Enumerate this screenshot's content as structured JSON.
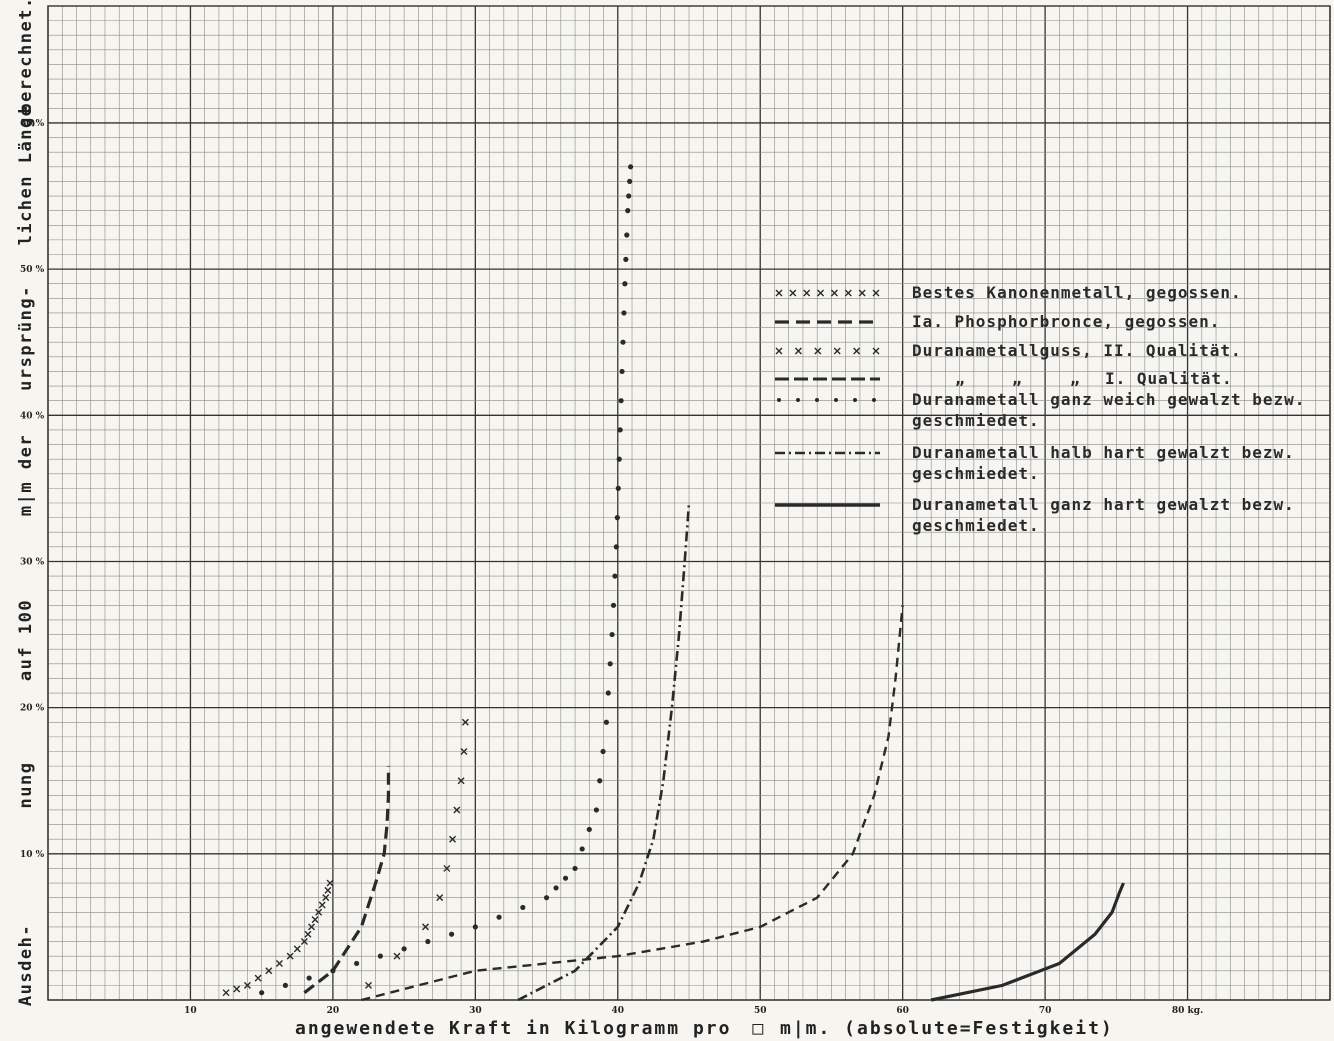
{
  "chart_data": {
    "type": "line",
    "xlabel_parts": [
      "angewendete Kraft in Kilogramm pro",
      "m|m. (absolute=Festigkeit)"
    ],
    "xlabel_box_symbol": "□",
    "ylabel_segments": [
      "Ausdeh-",
      "nung",
      "auf 100",
      "m|m der",
      "ursprüng-",
      "lichen Länge",
      "berechnet."
    ],
    "x_ticks": [
      {
        "value": 10,
        "label": "10"
      },
      {
        "value": 20,
        "label": "20"
      },
      {
        "value": 30,
        "label": "30"
      },
      {
        "value": 40,
        "label": "40"
      },
      {
        "value": 50,
        "label": "50"
      },
      {
        "value": 60,
        "label": "60"
      },
      {
        "value": 70,
        "label": "70"
      },
      {
        "value": 80,
        "label": "80 kg."
      }
    ],
    "y_ticks": [
      {
        "value": 10,
        "label": "10 %"
      },
      {
        "value": 20,
        "label": "20 %"
      },
      {
        "value": 30,
        "label": "30 %"
      },
      {
        "value": 40,
        "label": "40 %"
      },
      {
        "value": 50,
        "label": "50 %"
      },
      {
        "value": 60,
        "label": "60 %"
      }
    ],
    "xlim": [
      0,
      90
    ],
    "ylim": [
      0,
      68
    ],
    "grid": true,
    "legend_position": "right",
    "series": [
      {
        "name": "Bestes Kanonenmetall, gegossen.",
        "style": "x-dense",
        "x": [
          12.5,
          14,
          15.5,
          17,
          18,
          18.5,
          19,
          19.5,
          19.8
        ],
        "y": [
          0.5,
          1,
          2,
          3,
          4,
          5,
          6,
          7,
          8
        ]
      },
      {
        "name": "Ia. Phosphorbronce, gegossen.",
        "style": "long-dash",
        "x": [
          18,
          20,
          22,
          23,
          23.6,
          23.8,
          23.9,
          23.9
        ],
        "y": [
          0.5,
          2,
          5,
          8,
          10,
          12,
          14,
          16
        ]
      },
      {
        "name": "Duranametallguss, II. Qualität.",
        "style": "x-sparse",
        "x": [
          22.5,
          24.5,
          26.5,
          27.5,
          28,
          28.4,
          28.7,
          29,
          29.2,
          29.3
        ],
        "y": [
          1,
          3,
          5,
          7,
          9,
          11,
          13,
          15,
          17,
          19
        ]
      },
      {
        "name": "I. Qualität.",
        "label_prefix": [
          "„",
          "„",
          "„"
        ],
        "style": "dash",
        "x": [
          22,
          30,
          40,
          46,
          50,
          54,
          56.5,
          58,
          59,
          59.5,
          59.8,
          60
        ],
        "y": [
          0,
          2,
          3,
          4,
          5,
          7,
          10,
          14,
          18,
          22,
          25,
          27
        ]
      },
      {
        "name": "Duranametall ganz weich gewalzt bezw. geschmiedet.",
        "style": "dots",
        "x": [
          15,
          20,
          25,
          30,
          35,
          37,
          38.5,
          39.2,
          39.6,
          39.9,
          40.1,
          40.3,
          40.5,
          40.7,
          40.9
        ],
        "y": [
          0.5,
          2,
          3.5,
          5,
          7,
          9,
          13,
          19,
          25,
          31,
          37,
          43,
          49,
          54,
          57
        ]
      },
      {
        "name": "Duranametall halb hart gewalzt bezw. geschmiedet.",
        "style": "dash-dot",
        "x": [
          33,
          37,
          40,
          41.5,
          42.5,
          43.2,
          43.8,
          44.3,
          44.7,
          45
        ],
        "y": [
          0,
          2,
          5,
          8,
          11,
          15,
          20,
          25,
          30,
          34
        ]
      },
      {
        "name": "Duranametall ganz hart gewalzt bezw. geschmiedet.",
        "style": "solid",
        "x": [
          62,
          67,
          71,
          73.5,
          74.7,
          75.2,
          75.5
        ],
        "y": [
          0,
          1,
          2.5,
          4.5,
          6,
          7.3,
          8
        ]
      }
    ]
  }
}
